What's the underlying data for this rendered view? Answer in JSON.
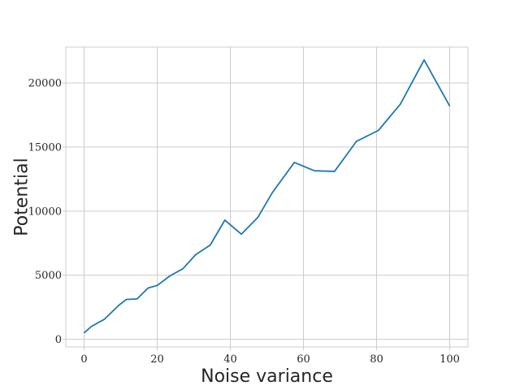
{
  "chart_data": {
    "type": "line",
    "title": "",
    "xlabel": "Noise variance",
    "ylabel": "Potential",
    "xlim": [
      -5,
      105
    ],
    "ylim": [
      -600,
      22800
    ],
    "xticks": [
      0,
      20,
      40,
      60,
      80,
      100
    ],
    "yticks": [
      0,
      5000,
      10000,
      15000,
      20000
    ],
    "grid": true,
    "series": [
      {
        "color": "#1f77b4",
        "x": [
          0,
          2,
          5.5,
          9.5,
          11.5,
          14.5,
          17.5,
          20,
          23.5,
          27,
          30.5,
          34.5,
          38.5,
          43,
          47.5,
          51.5,
          57.5,
          63,
          68.5,
          74.5,
          80.5,
          86.5,
          93,
          100
        ],
        "y": [
          500,
          1000,
          1550,
          2650,
          3100,
          3150,
          4000,
          4200,
          4950,
          5500,
          6600,
          7350,
          9300,
          8200,
          9500,
          11450,
          13800,
          13150,
          13100,
          15450,
          16300,
          18350,
          21800,
          18200
        ]
      }
    ]
  }
}
